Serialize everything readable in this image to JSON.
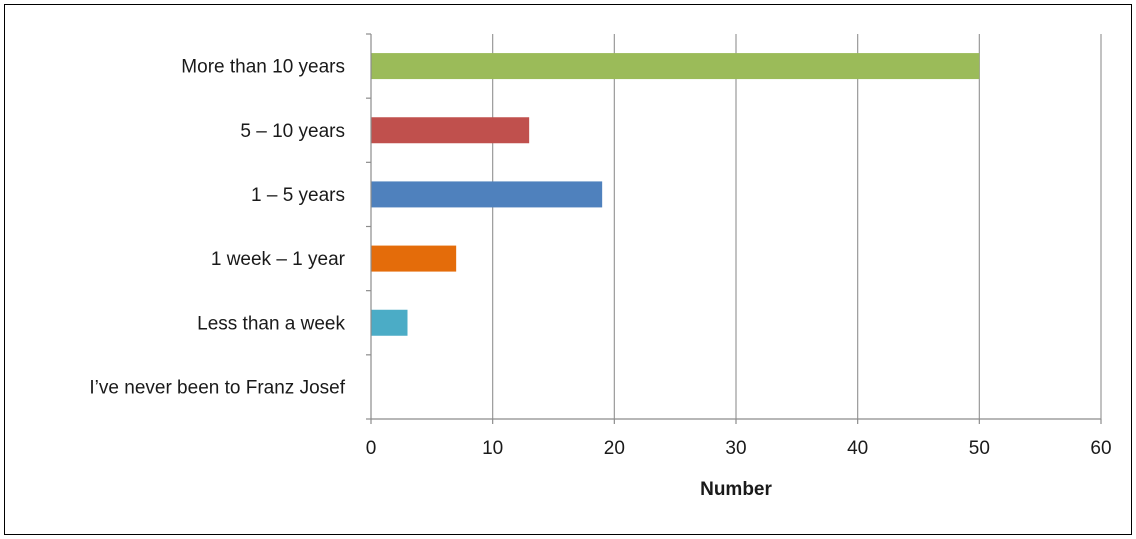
{
  "chart_data": {
    "type": "bar",
    "orientation": "horizontal",
    "categories": [
      "More than 10 years",
      "5 – 10 years",
      "1 – 5 years",
      "1 week – 1 year",
      "Less than a week",
      "I’ve never been to Franz Josef"
    ],
    "values": [
      50,
      13,
      19,
      7,
      3,
      0
    ],
    "colors": [
      "#9bbb59",
      "#c0504d",
      "#4f81bd",
      "#e46c0a",
      "#4bacc6",
      "#8064a2"
    ],
    "title": "",
    "xlabel": "Number",
    "ylabel": "",
    "xlim": [
      0,
      60
    ],
    "xticks": [
      0,
      10,
      20,
      30,
      40,
      50,
      60
    ],
    "grid": "vertical",
    "legend": "none"
  }
}
